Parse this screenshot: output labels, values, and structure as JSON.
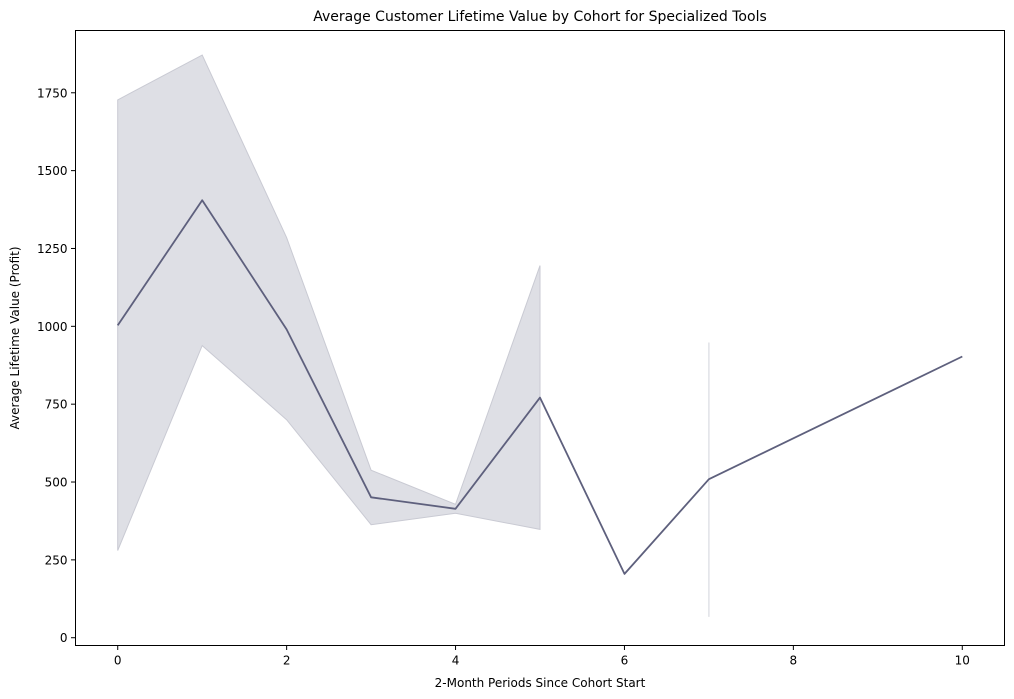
{
  "chart_data": {
    "type": "line",
    "title": "Average Customer Lifetime Value by Cohort for Specialized Tools",
    "xlabel": "2-Month Periods Since Cohort Start",
    "ylabel": "Average Lifetime Value (Profit)",
    "xlim": [
      -0.5,
      10.5
    ],
    "ylim": [
      -25,
      1950
    ],
    "xticks": [
      0,
      2,
      4,
      6,
      8,
      10
    ],
    "yticks": [
      0,
      250,
      500,
      750,
      1000,
      1250,
      1500,
      1750
    ],
    "grid": false,
    "legend": "none",
    "line_color": "#5e607d",
    "band_color": "#dedfe5",
    "series": [
      {
        "x": [
          0,
          1,
          2,
          3,
          4,
          5,
          6,
          7,
          10
        ],
        "y": [
          1003,
          1405,
          990,
          451,
          414,
          771,
          205,
          509,
          903
        ],
        "ci_lower": [
          280,
          938,
          700,
          363,
          400,
          348,
          null,
          67,
          null
        ],
        "ci_upper": [
          1727,
          1871,
          1285,
          538,
          428,
          1195,
          null,
          948,
          null
        ]
      }
    ]
  }
}
